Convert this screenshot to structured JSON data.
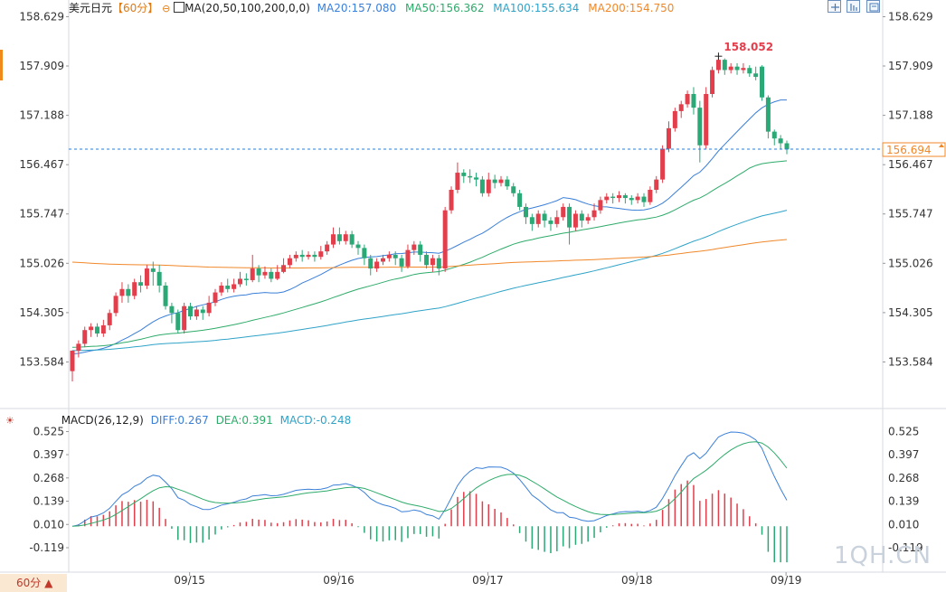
{
  "header": {
    "symbol": "美元日元",
    "period": "【60分】",
    "ma_label": "MA(20,50,100,200,0,0)",
    "ma20": "MA20:157.080",
    "ma50": "MA50:156.362",
    "ma100": "MA100:155.634",
    "ma200": "MA200:154.750"
  },
  "macd_header": {
    "label": "MACD(26,12,9)",
    "diff": "DIFF:0.267",
    "dea": "DEA:0.391",
    "macd": "MACD:-0.248"
  },
  "period_button": "60分 ▲",
  "watermark": "1QH.CN",
  "colors": {
    "up": "#e23e4b",
    "down": "#2aa876",
    "ma20": "#3a7fd8",
    "ma50": "#2eab6a",
    "ma100": "#2fa3c8",
    "ma200": "#f0882a",
    "diff": "#3a7fd8",
    "dea": "#2eab6a",
    "current": "#2f7dd1",
    "high": "#e23e4b"
  },
  "chart_data": {
    "type": "candlestick",
    "price_ticks": [
      "158.629",
      "157.909",
      "157.188",
      "156.467",
      "155.747",
      "155.026",
      "154.305",
      "153.584"
    ],
    "price_tick_values": [
      158.629,
      157.909,
      157.188,
      156.467,
      155.747,
      155.026,
      154.305,
      153.584
    ],
    "current_price": 156.694,
    "current_price_label": "156.694",
    "high_label": "158.052",
    "high_value": 158.052,
    "x_labels": [
      "09/15",
      "09/16",
      "09/17",
      "09/18",
      "09/19"
    ],
    "x_label_index": [
      18,
      42,
      66,
      90,
      114
    ],
    "candles": [
      [
        153.45,
        153.75,
        153.75,
        153.3
      ],
      [
        153.75,
        153.85,
        153.9,
        153.65
      ],
      [
        153.85,
        154.05,
        154.1,
        153.8
      ],
      [
        154.05,
        154.1,
        154.15,
        153.95
      ],
      [
        154.1,
        154.0,
        154.15,
        153.95
      ],
      [
        154.0,
        154.12,
        154.2,
        153.95
      ],
      [
        154.12,
        154.3,
        154.35,
        154.05
      ],
      [
        154.3,
        154.55,
        154.6,
        154.25
      ],
      [
        154.55,
        154.65,
        154.75,
        154.45
      ],
      [
        154.65,
        154.55,
        154.72,
        154.45
      ],
      [
        154.55,
        154.75,
        154.8,
        154.5
      ],
      [
        154.75,
        154.7,
        154.85,
        154.6
      ],
      [
        154.7,
        154.95,
        155.0,
        154.65
      ],
      [
        154.95,
        154.9,
        155.05,
        154.7
      ],
      [
        154.9,
        154.7,
        155.0,
        154.6
      ],
      [
        154.7,
        154.4,
        154.75,
        154.35
      ],
      [
        154.4,
        154.3,
        154.45,
        154.15
      ],
      [
        154.3,
        154.05,
        154.35,
        154.0
      ],
      [
        154.05,
        154.4,
        154.45,
        154.0
      ],
      [
        154.4,
        154.25,
        154.45,
        154.2
      ],
      [
        154.25,
        154.35,
        154.4,
        154.2
      ],
      [
        154.35,
        154.3,
        154.4,
        154.2
      ],
      [
        154.3,
        154.45,
        154.55,
        154.25
      ],
      [
        154.45,
        154.6,
        154.65,
        154.4
      ],
      [
        154.6,
        154.7,
        154.75,
        154.55
      ],
      [
        154.7,
        154.65,
        154.8,
        154.6
      ],
      [
        154.65,
        154.72,
        154.8,
        154.6
      ],
      [
        154.72,
        154.8,
        154.9,
        154.68
      ],
      [
        154.8,
        154.78,
        154.88,
        154.7
      ],
      [
        154.78,
        154.95,
        155.15,
        154.75
      ],
      [
        154.95,
        154.85,
        155.0,
        154.75
      ],
      [
        154.85,
        154.9,
        154.98,
        154.8
      ],
      [
        154.9,
        154.8,
        154.95,
        154.75
      ],
      [
        154.8,
        154.9,
        155.0,
        154.78
      ],
      [
        154.9,
        155.0,
        155.1,
        154.88
      ],
      [
        155.0,
        155.1,
        155.15,
        154.95
      ],
      [
        155.1,
        155.15,
        155.2,
        155.05
      ],
      [
        155.15,
        155.12,
        155.22,
        155.05
      ],
      [
        155.12,
        155.15,
        155.2,
        155.08
      ],
      [
        155.15,
        155.12,
        155.2,
        155.05
      ],
      [
        155.12,
        155.2,
        155.28,
        155.08
      ],
      [
        155.2,
        155.3,
        155.35,
        155.15
      ],
      [
        155.3,
        155.45,
        155.55,
        155.25
      ],
      [
        155.45,
        155.35,
        155.55,
        155.3
      ],
      [
        155.35,
        155.45,
        155.5,
        155.3
      ],
      [
        155.45,
        155.3,
        155.5,
        155.25
      ],
      [
        155.3,
        155.25,
        155.35,
        155.15
      ],
      [
        155.25,
        155.1,
        155.3,
        155.0
      ],
      [
        155.1,
        154.95,
        155.15,
        154.85
      ],
      [
        154.95,
        155.05,
        155.1,
        154.9
      ],
      [
        155.05,
        155.1,
        155.15,
        155.0
      ],
      [
        155.1,
        155.15,
        155.2,
        155.05
      ],
      [
        155.15,
        155.1,
        155.2,
        155.0
      ],
      [
        155.1,
        154.98,
        155.15,
        154.9
      ],
      [
        154.98,
        155.22,
        155.3,
        154.95
      ],
      [
        155.22,
        155.3,
        155.35,
        155.15
      ],
      [
        155.3,
        155.15,
        155.35,
        155.05
      ],
      [
        155.15,
        155.0,
        155.2,
        154.95
      ],
      [
        155.0,
        155.1,
        155.15,
        154.9
      ],
      [
        155.1,
        154.95,
        155.15,
        154.85
      ],
      [
        154.95,
        155.8,
        155.85,
        154.9
      ],
      [
        155.8,
        156.1,
        156.15,
        155.75
      ],
      [
        156.1,
        156.35,
        156.5,
        156.05
      ],
      [
        156.35,
        156.3,
        156.4,
        156.2
      ],
      [
        156.3,
        156.28,
        156.4,
        156.2
      ],
      [
        156.28,
        156.25,
        156.35,
        156.15
      ],
      [
        156.25,
        156.05,
        156.3,
        156.0
      ],
      [
        156.05,
        156.25,
        156.35,
        156.0
      ],
      [
        156.25,
        156.2,
        156.32,
        156.12
      ],
      [
        156.2,
        156.25,
        156.3,
        156.15
      ],
      [
        156.25,
        156.15,
        156.3,
        156.1
      ],
      [
        156.15,
        156.05,
        156.2,
        156.0
      ],
      [
        156.05,
        155.85,
        156.1,
        155.8
      ],
      [
        155.85,
        155.7,
        155.9,
        155.6
      ],
      [
        155.7,
        155.6,
        155.75,
        155.5
      ],
      [
        155.6,
        155.75,
        155.8,
        155.55
      ],
      [
        155.75,
        155.65,
        155.8,
        155.55
      ],
      [
        155.65,
        155.6,
        155.7,
        155.5
      ],
      [
        155.6,
        155.7,
        155.8,
        155.55
      ],
      [
        155.7,
        155.85,
        155.9,
        155.65
      ],
      [
        155.85,
        155.55,
        155.9,
        155.3
      ],
      [
        155.55,
        155.75,
        155.8,
        155.5
      ],
      [
        155.75,
        155.65,
        155.8,
        155.55
      ],
      [
        155.65,
        155.7,
        155.75,
        155.6
      ],
      [
        155.7,
        155.8,
        155.9,
        155.65
      ],
      [
        155.8,
        155.95,
        156.0,
        155.75
      ],
      [
        155.95,
        156.0,
        156.05,
        155.9
      ],
      [
        156.0,
        155.98,
        156.05,
        155.9
      ],
      [
        155.98,
        156.02,
        156.08,
        155.92
      ],
      [
        156.02,
        155.98,
        156.05,
        155.9
      ],
      [
        155.98,
        155.95,
        156.02,
        155.88
      ],
      [
        155.95,
        156.0,
        156.05,
        155.9
      ],
      [
        156.0,
        155.92,
        156.05,
        155.85
      ],
      [
        155.92,
        156.1,
        156.15,
        155.88
      ],
      [
        156.1,
        156.25,
        156.3,
        156.05
      ],
      [
        156.25,
        156.7,
        156.75,
        156.2
      ],
      [
        156.7,
        157.0,
        157.1,
        156.65
      ],
      [
        157.0,
        157.25,
        157.3,
        156.95
      ],
      [
        157.25,
        157.35,
        157.4,
        157.15
      ],
      [
        157.35,
        157.5,
        157.55,
        157.3
      ],
      [
        157.5,
        157.3,
        157.6,
        157.2
      ],
      [
        157.3,
        156.75,
        157.4,
        156.5
      ],
      [
        156.75,
        157.5,
        157.6,
        156.7
      ],
      [
        157.5,
        157.85,
        157.9,
        157.45
      ],
      [
        157.85,
        158.0,
        158.052,
        157.8
      ],
      [
        158.0,
        157.85,
        158.02,
        157.78
      ],
      [
        157.85,
        157.9,
        157.95,
        157.8
      ],
      [
        157.9,
        157.85,
        157.95,
        157.78
      ],
      [
        157.85,
        157.88,
        157.95,
        157.8
      ],
      [
        157.88,
        157.8,
        157.92,
        157.75
      ],
      [
        157.8,
        157.75,
        157.9,
        157.7
      ],
      [
        157.9,
        157.45,
        157.92,
        157.4
      ],
      [
        157.45,
        156.95,
        157.48,
        156.85
      ],
      [
        156.95,
        156.85,
        156.98,
        156.75
      ],
      [
        156.85,
        156.78,
        156.9,
        156.7
      ],
      [
        156.78,
        156.69,
        156.82,
        156.62
      ]
    ],
    "macd_ticks": [
      "0.525",
      "0.397",
      "0.268",
      "0.139",
      "0.010",
      "-0.119"
    ],
    "macd_tick_values": [
      0.525,
      0.397,
      0.268,
      0.139,
      0.01,
      -0.119
    ]
  }
}
